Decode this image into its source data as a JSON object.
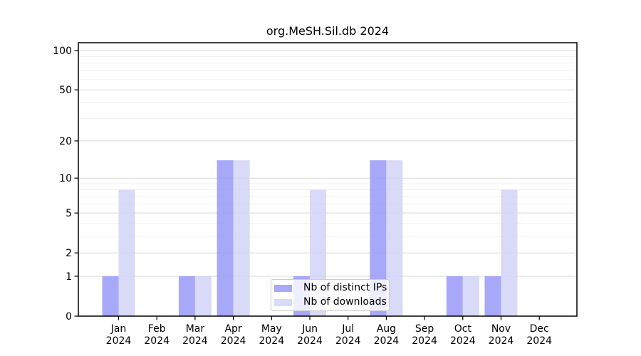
{
  "chart_data": {
    "type": "bar",
    "title": "org.MeSH.Sil.db 2024",
    "categories": [
      "Jan 2024",
      "Feb 2024",
      "Mar 2024",
      "Apr 2024",
      "May 2024",
      "Jun 2024",
      "Jul 2024",
      "Aug 2024",
      "Sep 2024",
      "Oct 2024",
      "Nov 2024",
      "Dec 2024"
    ],
    "series": [
      {
        "name": "Nb of distinct IPs",
        "color": "#a8a8f8",
        "values": [
          1,
          0,
          1,
          14,
          0,
          1,
          0,
          14,
          0,
          1,
          1,
          0
        ]
      },
      {
        "name": "Nb of downloads",
        "color": "#d9d9f8",
        "values": [
          8,
          0,
          1,
          14,
          0,
          8,
          0,
          14,
          0,
          1,
          8,
          0
        ]
      }
    ],
    "xlabel": "",
    "ylabel": "",
    "scale": "log1p",
    "ylim": [
      0,
      115
    ],
    "yticks": [
      0,
      1,
      2,
      5,
      10,
      20,
      50,
      100
    ],
    "minor_grid_values": [
      3,
      4,
      6,
      7,
      8,
      9,
      30,
      40,
      60,
      70,
      80,
      90
    ],
    "grid": true,
    "legend": {
      "position": "inside-bottom-center",
      "entries": [
        "Nb of distinct IPs",
        "Nb of downloads"
      ]
    }
  },
  "colors": {
    "background": "#ffffff",
    "axis": "#000000",
    "major_grid": "#d9d9d9",
    "minor_grid": "#f0f0f0",
    "legend_border": "#cccccc"
  }
}
